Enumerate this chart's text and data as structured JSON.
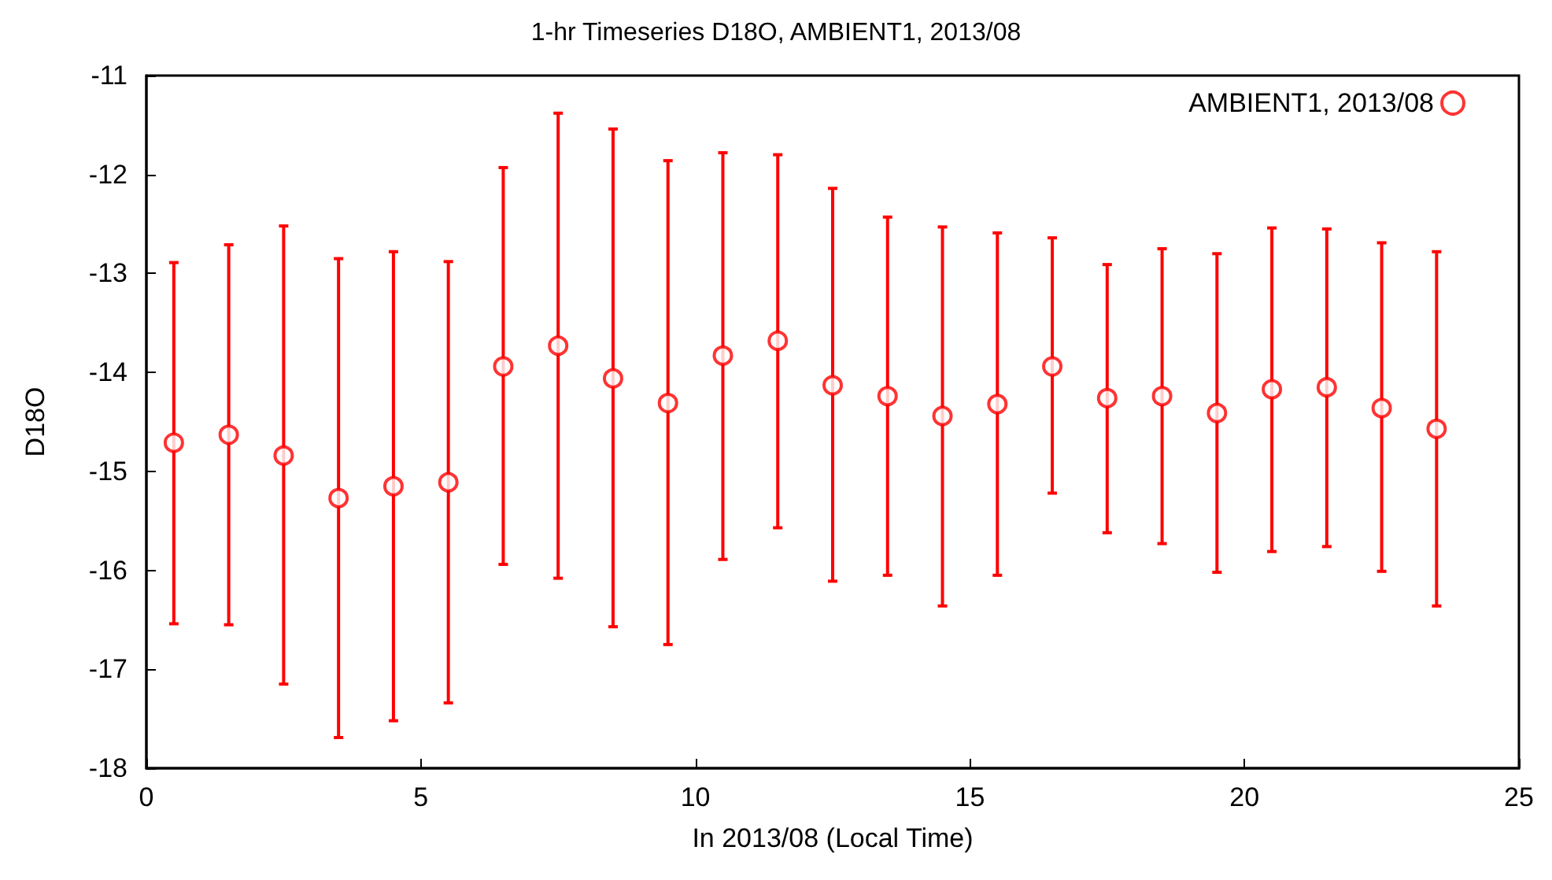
{
  "chart_data": {
    "type": "scatter",
    "title": "1-hr Timeseries D18O, AMBIENT1, 2013/08",
    "xlabel": "In 2013/08 (Local Time)",
    "ylabel": "D18O",
    "x": [
      0.5,
      1.5,
      2.5,
      3.5,
      4.5,
      5.5,
      6.5,
      7.5,
      8.5,
      9.5,
      10.5,
      11.5,
      12.5,
      13.5,
      14.5,
      15.5,
      16.5,
      17.5,
      18.5,
      19.5,
      20.5,
      21.5,
      22.5,
      23.5
    ],
    "series": [
      {
        "name": "AMBIENT1, 2013/08",
        "color": "#ff0000",
        "values": [
          -14.71,
          -14.63,
          -14.84,
          -15.27,
          -15.15,
          -15.11,
          -13.94,
          -13.73,
          -14.06,
          -14.31,
          -13.83,
          -13.68,
          -14.13,
          -14.24,
          -14.44,
          -14.32,
          -13.94,
          -14.26,
          -14.24,
          -14.41,
          -14.17,
          -14.15,
          -14.36,
          -14.57
        ],
        "errors": [
          [
            -16.54,
            -12.89
          ],
          [
            -16.55,
            -12.71
          ],
          [
            -17.15,
            -12.52
          ],
          [
            -17.69,
            -12.85
          ],
          [
            -17.52,
            -12.78
          ],
          [
            -17.34,
            -12.88
          ],
          [
            -15.94,
            -11.93
          ],
          [
            -16.08,
            -11.38
          ],
          [
            -16.57,
            -11.54
          ],
          [
            -16.75,
            -11.86
          ],
          [
            -15.89,
            -11.78
          ],
          [
            -15.57,
            -11.8
          ],
          [
            -16.11,
            -12.14
          ],
          [
            -16.05,
            -12.43
          ],
          [
            -16.36,
            -12.53
          ],
          [
            -16.05,
            -12.59
          ],
          [
            -15.22,
            -12.64
          ],
          [
            -15.62,
            -12.91
          ],
          [
            -15.73,
            -12.75
          ],
          [
            -16.02,
            -12.8
          ],
          [
            -15.81,
            -12.54
          ],
          [
            -15.76,
            -12.55
          ],
          [
            -16.01,
            -12.69
          ],
          [
            -16.36,
            -12.78
          ]
        ]
      }
    ],
    "xlim": [
      0,
      25
    ],
    "xticks": [
      0,
      5,
      10,
      15,
      20,
      25
    ],
    "ylim": [
      -18,
      -11
    ],
    "yticks": [
      -18,
      -17,
      -16,
      -15,
      -14,
      -13,
      -12,
      -11
    ],
    "grid": false,
    "legend": "top right",
    "marker": "circle"
  }
}
